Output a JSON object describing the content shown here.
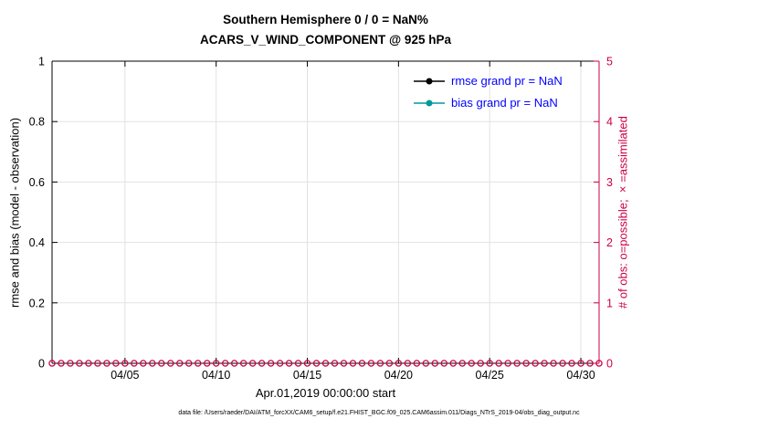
{
  "title": {
    "line1": "Southern Hemisphere 0 / 0 = NaN%",
    "line2": "ACARS_V_WIND_COMPONENT @ 925 hPa"
  },
  "axes": {
    "left": {
      "label": "rmse and bias (model - observation)",
      "ticks": [
        "0",
        "0.2",
        "0.4",
        "0.6",
        "0.8",
        "1"
      ],
      "tick_values": [
        0,
        0.2,
        0.4,
        0.6,
        0.8,
        1
      ],
      "range": [
        0,
        1
      ],
      "color": "#000000"
    },
    "right": {
      "label": "# of obs: o=possible; ×=assimilated",
      "ticks": [
        "0",
        "1",
        "2",
        "3",
        "4",
        "5"
      ],
      "tick_values": [
        0,
        1,
        2,
        3,
        4,
        5
      ],
      "range": [
        0,
        5
      ],
      "color": "#cc0044"
    },
    "x": {
      "label": "Apr.01,2019 00:00:00 start",
      "ticks": [
        "04/05",
        "04/10",
        "04/15",
        "04/20",
        "04/25",
        "04/30"
      ],
      "tick_days": [
        4,
        9,
        14,
        19,
        24,
        29
      ],
      "range_days": [
        0,
        30
      ]
    }
  },
  "legend": [
    {
      "label": "rmse grand pr = NaN",
      "color": "#000000"
    },
    {
      "label": "bias grand pr = NaN",
      "color": "#009999"
    }
  ],
  "legend_text_color": "#0000ff",
  "caption": "data file: /Users/raeder/DAI/ATM_forcXX/CAM6_setup/f.e21.FHIST_BGC.f09_025.CAM6assim.011/Diags_NTrS_2019-04/obs_diag_output.nc",
  "chart_data": {
    "type": "line",
    "title": "Southern Hemisphere 0 / 0 = NaN% | ACARS_V_WIND_COMPONENT @ 925 hPa",
    "xlabel": "Apr.01,2019 00:00:00 start",
    "ylabel_left": "rmse and bias (model - observation)",
    "ylabel_right": "# of obs: o=possible; ×=assimilated",
    "xlim_days": [
      0,
      30
    ],
    "ylim_left": [
      0,
      1
    ],
    "ylim_right": [
      0,
      5
    ],
    "x_tick_days": [
      4,
      9,
      14,
      19,
      24,
      29
    ],
    "x_tick_labels": [
      "04/05",
      "04/10",
      "04/15",
      "04/20",
      "04/25",
      "04/30"
    ],
    "grid": true,
    "legend_position": "top-right-inside",
    "colors": {
      "grid": "#e2e2e2",
      "axis_left": "#000000",
      "axis_right": "#cc0044",
      "rmse": "#000000",
      "bias": "#009999"
    },
    "series": [
      {
        "name": "rmse grand pr = NaN",
        "axis": "left",
        "color": "#000000",
        "marker": "dot",
        "x_days": [],
        "values": [],
        "note": "all NaN - nothing plotted"
      },
      {
        "name": "bias grand pr = NaN",
        "axis": "left",
        "color": "#009999",
        "marker": "dot",
        "x_days": [],
        "values": [],
        "note": "all NaN - nothing plotted"
      },
      {
        "name": "obs possible",
        "axis": "right",
        "color": "#cc0044",
        "marker": "o",
        "x_days_start": 0,
        "x_days_end": 30,
        "x_step_days": 0.5,
        "y_constant": 0,
        "note": "open circles at y=0 for every obs time across the whole axis"
      },
      {
        "name": "obs assimilated",
        "axis": "right",
        "color": "#cc0044",
        "marker": "x",
        "x_days": [],
        "values": [],
        "note": "0 assimilated - nothing plotted"
      }
    ]
  }
}
